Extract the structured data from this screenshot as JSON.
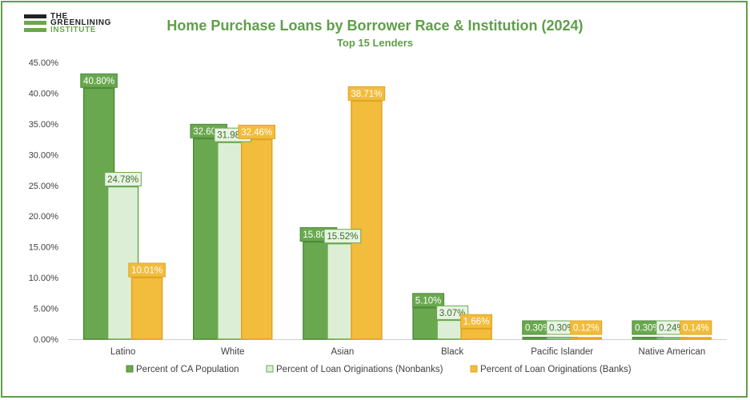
{
  "logo": {
    "line1": "THE",
    "line2": "GREENLINING",
    "line3": "INSTITUTE"
  },
  "chart_data": {
    "type": "bar",
    "title": "Home Purchase Loans by Borrower Race & Institution (2024)",
    "subtitle": "Top 15 Lenders",
    "categories": [
      "Latino",
      "White",
      "Asian",
      "Black",
      "Pacific Islander",
      "Native American"
    ],
    "series": [
      {
        "name": "Percent of CA Population",
        "values": [
          40.8,
          32.6,
          15.8,
          5.1,
          0.3,
          0.3
        ],
        "labels": [
          "40.80%",
          "32.60%",
          "15.80%",
          "5.10%",
          "0.30%",
          "0.30%"
        ],
        "fill": "#6aa84f",
        "stroke": "#4e8a3a",
        "label_bg": "#6aa84f",
        "label_color": "#ffffff"
      },
      {
        "name": "Percent of Loan Originations (Nonbanks)",
        "values": [
          24.78,
          31.98,
          15.52,
          3.07,
          0.3,
          0.24
        ],
        "labels": [
          "24.78%",
          "31.98%",
          "15.52%",
          "3.07%",
          "0.30%",
          "0.24%"
        ],
        "fill": "#dcefd6",
        "stroke": "#6aa84f",
        "label_bg": "#e8f4e3",
        "label_color": "#3e6b2e"
      },
      {
        "name": "Percent of Loan Originations (Banks)",
        "values": [
          10.01,
          32.46,
          38.71,
          1.66,
          0.12,
          0.14
        ],
        "labels": [
          "10.01%",
          "32.46%",
          "38.71%",
          "1.66%",
          "0.12%",
          "0.14%"
        ],
        "fill": "#f2bc3c",
        "stroke": "#e0a520",
        "label_bg": "#f2bc3c",
        "label_color": "#ffffff"
      }
    ],
    "ylim": [
      0,
      45
    ],
    "yticks": [
      "0.00%",
      "5.00%",
      "10.00%",
      "15.00%",
      "20.00%",
      "25.00%",
      "30.00%",
      "35.00%",
      "40.00%",
      "45.00%"
    ],
    "grid": false,
    "legend_position": "bottom"
  }
}
